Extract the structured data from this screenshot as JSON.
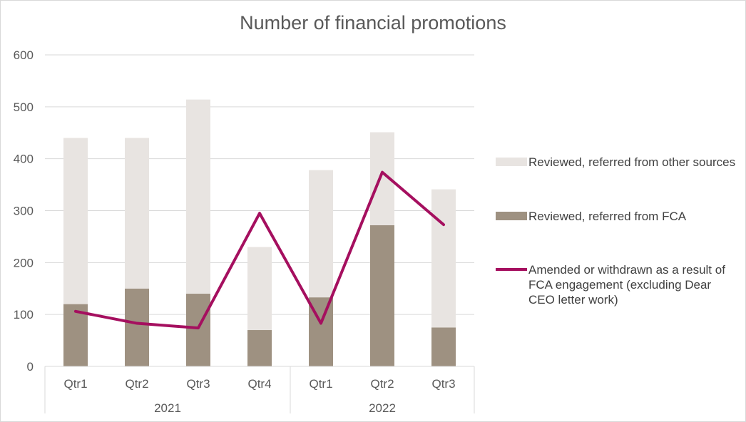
{
  "chart_data": {
    "type": "bar",
    "title": "Number of financial promotions",
    "categories": [
      "Qtr1",
      "Qtr2",
      "Qtr3",
      "Qtr4",
      "Qtr1",
      "Qtr2",
      "Qtr3"
    ],
    "groups": [
      {
        "label": "2021",
        "count": 4
      },
      {
        "label": "2022",
        "count": 3
      }
    ],
    "stacked": true,
    "ylim": [
      0,
      600
    ],
    "yticks": [
      0,
      100,
      200,
      300,
      400,
      500,
      600
    ],
    "grid": true,
    "legend_position": "right",
    "series": [
      {
        "name": "Reviewed, referred from FCA",
        "kind": "bar",
        "color": "#9e9181",
        "values": [
          120,
          150,
          140,
          70,
          133,
          272,
          75
        ]
      },
      {
        "name": "Reviewed, referred from other sources",
        "kind": "bar",
        "color": "#e8e4e1",
        "values": [
          320,
          290,
          374,
          160,
          245,
          179,
          266
        ]
      },
      {
        "name": "Amended or withdrawn as a result of FCA engagement (excluding Dear CEO letter work)",
        "kind": "line",
        "color": "#a50f5f",
        "values": [
          106,
          83,
          74,
          295,
          83,
          374,
          273
        ]
      }
    ]
  }
}
